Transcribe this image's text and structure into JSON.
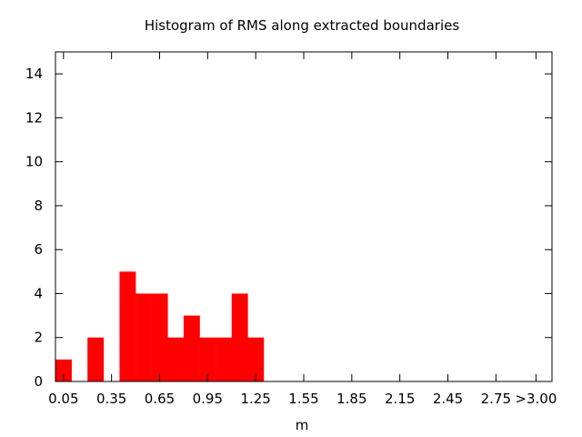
{
  "chart_data": {
    "type": "bar",
    "title": "Histogram of RMS along extracted boundaries",
    "xlabel": "m",
    "ylabel": "",
    "bin_width": 0.1,
    "bins": [
      0.05,
      0.15,
      0.25,
      0.35,
      0.45,
      0.55,
      0.65,
      0.75,
      0.85,
      0.95,
      1.05,
      1.15,
      1.25
    ],
    "values": [
      1,
      0,
      2,
      0,
      5,
      4,
      4,
      2,
      3,
      2,
      2,
      4,
      2
    ],
    "xlim": [
      0.0,
      3.1
    ],
    "ylim": [
      0,
      15
    ],
    "x_ticks": [
      0.05,
      0.35,
      0.65,
      0.95,
      1.25,
      1.55,
      1.85,
      2.15,
      2.45,
      2.75,
      3.0
    ],
    "x_tick_labels": [
      "0.05",
      "0.35",
      "0.65",
      "0.95",
      "1.25",
      "1.55",
      "1.85",
      "2.15",
      "2.45",
      "2.75",
      ">3.00"
    ],
    "y_ticks": [
      0,
      2,
      4,
      6,
      8,
      10,
      12,
      14
    ],
    "y_tick_labels": [
      "0",
      "2",
      "4",
      "6",
      "8",
      "10",
      "12",
      "14"
    ],
    "bar_color": "#ff0000",
    "grid": false,
    "legend": "none"
  }
}
